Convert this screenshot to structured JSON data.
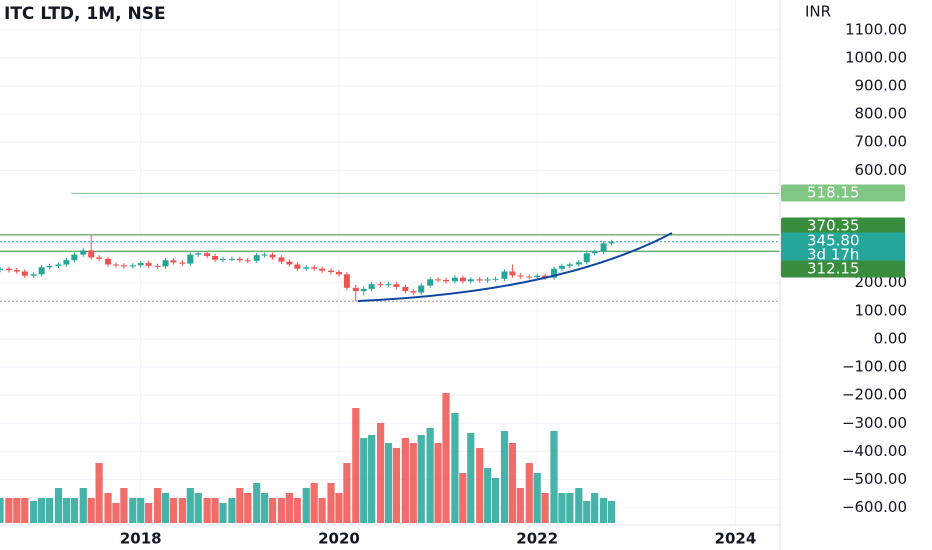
{
  "chart_data": {
    "type": "candlestick",
    "title": "ITC LTD, 1M, NSE",
    "currency": "INR",
    "countdown": "3d 17h",
    "up_color": "#26a69a",
    "down_color": "#ef5350",
    "grid": true,
    "xlim": [
      2016.58,
      2024.45
    ],
    "xticks": [
      2018,
      2020,
      2022,
      2024
    ],
    "ylim": [
      -662,
      1206
    ],
    "yticks": [
      {
        "value": 1100,
        "label": "1100.00"
      },
      {
        "value": 1000,
        "label": "1000.00"
      },
      {
        "value": 900,
        "label": "900.00"
      },
      {
        "value": 800,
        "label": "800.00"
      },
      {
        "value": 700,
        "label": "700.00"
      },
      {
        "value": 600,
        "label": "600.00"
      },
      {
        "value": 200,
        "label": "200.00"
      },
      {
        "value": 100,
        "label": "100.00"
      },
      {
        "value": 0,
        "label": "0.00"
      },
      {
        "value": -100,
        "label": "−100.00"
      },
      {
        "value": -200,
        "label": "−200.00"
      },
      {
        "value": -300,
        "label": "−300.00"
      },
      {
        "value": -400,
        "label": "−400.00"
      },
      {
        "value": -500,
        "label": "−500.00"
      },
      {
        "value": -600,
        "label": "−600.00"
      }
    ],
    "x": [
      2016.58,
      2016.67,
      2016.75,
      2016.83,
      2016.92,
      2017.0,
      2017.08,
      2017.17,
      2017.25,
      2017.33,
      2017.42,
      2017.5,
      2017.58,
      2017.67,
      2017.75,
      2017.83,
      2017.92,
      2018.0,
      2018.08,
      2018.17,
      2018.25,
      2018.33,
      2018.42,
      2018.5,
      2018.58,
      2018.67,
      2018.75,
      2018.83,
      2018.92,
      2019.0,
      2019.08,
      2019.17,
      2019.25,
      2019.33,
      2019.42,
      2019.5,
      2019.58,
      2019.67,
      2019.75,
      2019.83,
      2019.92,
      2020.0,
      2020.08,
      2020.17,
      2020.25,
      2020.33,
      2020.42,
      2020.5,
      2020.58,
      2020.67,
      2020.75,
      2020.83,
      2020.92,
      2021.0,
      2021.08,
      2021.17,
      2021.25,
      2021.33,
      2021.42,
      2021.5,
      2021.58,
      2021.67,
      2021.75,
      2021.83,
      2021.92,
      2022.0,
      2022.08,
      2022.17,
      2022.25,
      2022.33,
      2022.42,
      2022.5,
      2022.58,
      2022.67,
      2022.75
    ],
    "open": [
      245,
      250,
      245,
      240,
      225,
      230,
      255,
      260,
      265,
      280,
      300,
      315,
      290,
      285,
      265,
      262,
      258,
      262,
      270,
      260,
      258,
      280,
      272,
      268,
      300,
      305,
      295,
      282,
      285,
      285,
      280,
      278,
      298,
      300,
      290,
      275,
      265,
      250,
      255,
      250,
      243,
      238,
      230,
      182,
      170,
      178,
      195,
      194,
      195,
      185,
      170,
      165,
      190,
      212,
      210,
      205,
      218,
      205,
      212,
      208,
      212,
      214,
      240,
      226,
      222,
      220,
      225,
      218,
      250,
      260,
      265,
      273,
      305,
      310,
      340
    ],
    "high": [
      258,
      258,
      253,
      248,
      238,
      263,
      268,
      273,
      288,
      308,
      323,
      370,
      298,
      293,
      273,
      270,
      270,
      278,
      278,
      268,
      288,
      288,
      280,
      308,
      313,
      313,
      303,
      293,
      293,
      293,
      288,
      306,
      308,
      308,
      298,
      283,
      273,
      263,
      263,
      258,
      251,
      246,
      238,
      192,
      186,
      203,
      203,
      203,
      203,
      193,
      178,
      198,
      220,
      220,
      218,
      226,
      226,
      220,
      220,
      220,
      222,
      248,
      265,
      234,
      230,
      233,
      233,
      258,
      268,
      273,
      281,
      313,
      318,
      348,
      353
    ],
    "low": [
      237,
      237,
      232,
      217,
      217,
      222,
      247,
      252,
      257,
      272,
      292,
      282,
      277,
      257,
      254,
      250,
      250,
      254,
      252,
      250,
      250,
      264,
      260,
      260,
      292,
      287,
      274,
      274,
      277,
      272,
      270,
      270,
      290,
      282,
      267,
      257,
      242,
      242,
      242,
      235,
      230,
      222,
      174,
      134,
      155,
      170,
      186,
      186,
      177,
      162,
      157,
      157,
      182,
      202,
      197,
      197,
      197,
      197,
      200,
      200,
      204,
      206,
      218,
      214,
      212,
      212,
      210,
      210,
      242,
      252,
      257,
      265,
      297,
      302,
      332
    ],
    "close": [
      250,
      245,
      240,
      225,
      230,
      255,
      260,
      265,
      280,
      300,
      315,
      290,
      285,
      265,
      262,
      258,
      262,
      270,
      260,
      258,
      280,
      272,
      268,
      300,
      305,
      295,
      282,
      285,
      285,
      280,
      278,
      298,
      300,
      290,
      275,
      265,
      250,
      255,
      250,
      243,
      238,
      230,
      182,
      170,
      178,
      195,
      194,
      195,
      185,
      170,
      165,
      190,
      212,
      210,
      205,
      218,
      205,
      212,
      208,
      212,
      214,
      240,
      226,
      222,
      220,
      225,
      218,
      250,
      260,
      265,
      273,
      305,
      310,
      340,
      345.8
    ],
    "volume": [
      25,
      25,
      25,
      25,
      22,
      25,
      25,
      35,
      25,
      25,
      35,
      25,
      60,
      30,
      20,
      35,
      25,
      25,
      20,
      35,
      30,
      25,
      25,
      35,
      30,
      25,
      25,
      20,
      25,
      35,
      30,
      40,
      30,
      25,
      25,
      30,
      25,
      35,
      40,
      25,
      40,
      30,
      60,
      115,
      85,
      88,
      100,
      80,
      75,
      85,
      80,
      88,
      95,
      80,
      130,
      110,
      50,
      90,
      75,
      55,
      45,
      92,
      80,
      35,
      60,
      50,
      30,
      92,
      30,
      30,
      35,
      22,
      30,
      25,
      22
    ],
    "price_lines": [
      {
        "value": 518.15,
        "label": "518.15",
        "color": "#81c784",
        "from": 2017.3,
        "style": "solid"
      },
      {
        "value": 370.35,
        "label": "370.35",
        "color": "#388e3c",
        "style": "solid"
      },
      {
        "value": 345.8,
        "label": "345.80",
        "color": "#26a69a",
        "style": "dotted"
      },
      {
        "value": 312.15,
        "label": "312.15",
        "color": "#388e3c",
        "style": "solid"
      },
      {
        "value": 134,
        "color": "#9e9e9e",
        "style": "dotted"
      }
    ]
  }
}
